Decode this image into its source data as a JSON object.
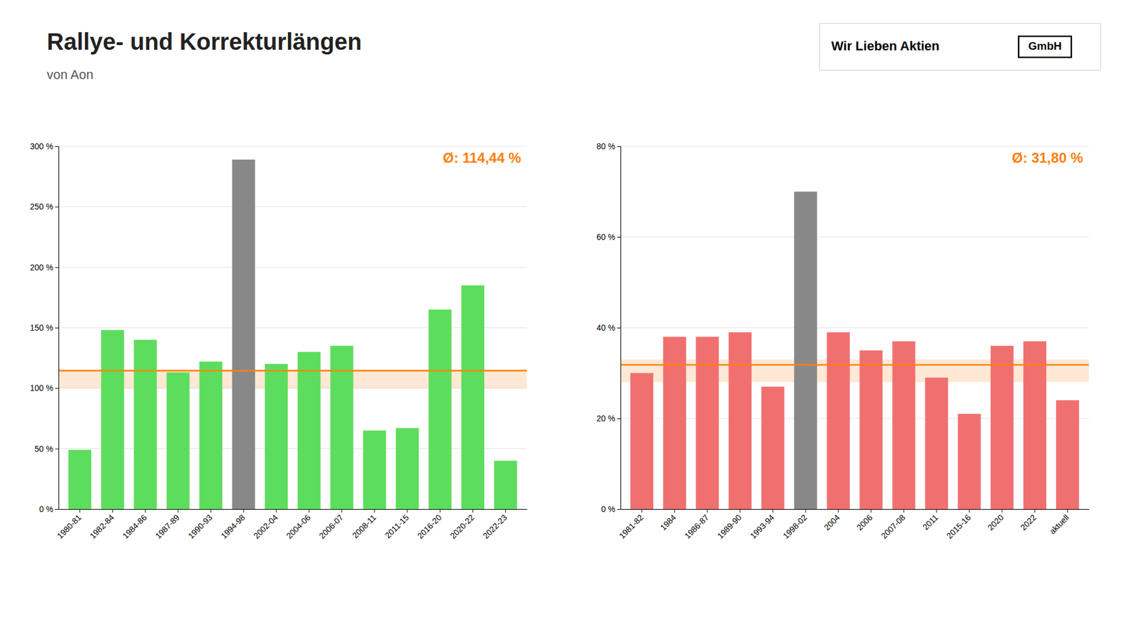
{
  "chart_data": [
    {
      "type": "bar",
      "title": "Rallye- und Korrekturlängen",
      "subtitle": "von Aon",
      "logo_text": "Wir Lieben Aktien",
      "logo_box": "GmbH",
      "categories": [
        "1980-81",
        "1982-84",
        "1984-86",
        "1987-89",
        "1990-93",
        "1994-98",
        "2002-04",
        "2004-06",
        "2006-07",
        "2008-11",
        "2011-15",
        "2016-20",
        "2020-22",
        "2022-23"
      ],
      "values": [
        49,
        148,
        140,
        113,
        122,
        289,
        120,
        130,
        135,
        65,
        67,
        165,
        185,
        40
      ],
      "colors": [
        "#5ddd5d",
        "#5ddd5d",
        "#5ddd5d",
        "#5ddd5d",
        "#5ddd5d",
        "#888888",
        "#5ddd5d",
        "#5ddd5d",
        "#5ddd5d",
        "#5ddd5d",
        "#5ddd5d",
        "#5ddd5d",
        "#5ddd5d",
        "#5ddd5d"
      ],
      "ylim": [
        0,
        300
      ],
      "yticks": [
        {
          "value": 0,
          "label": "0 %"
        },
        {
          "value": 50,
          "label": "50 %"
        },
        {
          "value": 100,
          "label": "100 %"
        },
        {
          "value": 150,
          "label": "150 %"
        },
        {
          "value": 200,
          "label": "200 %"
        },
        {
          "value": 250,
          "label": "250 %"
        },
        {
          "value": 300,
          "label": "300 %"
        }
      ],
      "grid": true,
      "average_band": [
        100,
        116
      ],
      "annotations": [
        {
          "text": "Ø: 114,44 %",
          "value": 114.44
        }
      ]
    },
    {
      "type": "bar",
      "categories": [
        "1981-82",
        "1984",
        "1986-87",
        "1989-90",
        "1993-94",
        "1998-02",
        "2004",
        "2006",
        "2007-08",
        "2011",
        "2015-16",
        "2020",
        "2022",
        "aktuell"
      ],
      "values": [
        30,
        38,
        38,
        39,
        27,
        70,
        39,
        35,
        37,
        29,
        21,
        36,
        37,
        24
      ],
      "colors": [
        "#f07070",
        "#f07070",
        "#f07070",
        "#f07070",
        "#f07070",
        "#888888",
        "#f07070",
        "#f07070",
        "#f07070",
        "#f07070",
        "#f07070",
        "#f07070",
        "#f07070",
        "#f07070"
      ],
      "ylim": [
        0,
        80
      ],
      "yticks": [
        {
          "value": 0,
          "label": "0 %"
        },
        {
          "value": 20,
          "label": "20 %"
        },
        {
          "value": 40,
          "label": "40 %"
        },
        {
          "value": 60,
          "label": "60 %"
        },
        {
          "value": 80,
          "label": "80 %"
        }
      ],
      "grid": true,
      "average_band": [
        28,
        33
      ],
      "annotations": [
        {
          "text": "Ø: 31,80 %",
          "value": 31.8
        }
      ]
    }
  ]
}
